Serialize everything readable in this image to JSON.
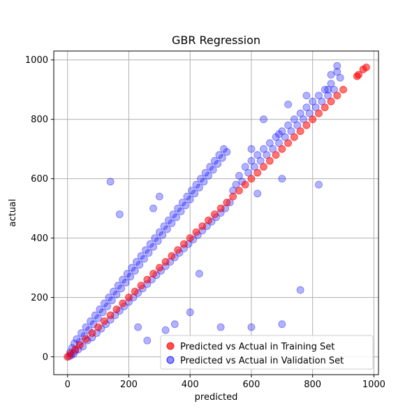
{
  "chart_data": {
    "type": "scatter",
    "title": "GBR Regression",
    "xlabel": "predicted",
    "ylabel": "actual",
    "xlim": [
      -45,
      1015
    ],
    "ylim": [
      -60,
      1030
    ],
    "xticks": [
      0,
      200,
      400,
      600,
      800,
      1000
    ],
    "yticks": [
      0,
      200,
      400,
      600,
      800,
      1000
    ],
    "grid": true,
    "legend_position": "lower-right",
    "series": [
      {
        "name": "Predicted vs Actual in Training Set",
        "color": "#ff0000",
        "opacity": 0.55,
        "points": [
          [
            0,
            0
          ],
          [
            10,
            10
          ],
          [
            25,
            25
          ],
          [
            40,
            40
          ],
          [
            60,
            60
          ],
          [
            80,
            80
          ],
          [
            100,
            100
          ],
          [
            120,
            120
          ],
          [
            140,
            140
          ],
          [
            160,
            160
          ],
          [
            180,
            180
          ],
          [
            200,
            200
          ],
          [
            220,
            220
          ],
          [
            240,
            240
          ],
          [
            260,
            260
          ],
          [
            280,
            280
          ],
          [
            300,
            300
          ],
          [
            320,
            320
          ],
          [
            340,
            340
          ],
          [
            360,
            360
          ],
          [
            380,
            380
          ],
          [
            400,
            400
          ],
          [
            420,
            420
          ],
          [
            440,
            440
          ],
          [
            460,
            460
          ],
          [
            480,
            480
          ],
          [
            500,
            500
          ],
          [
            520,
            520
          ],
          [
            540,
            540
          ],
          [
            560,
            560
          ],
          [
            580,
            580
          ],
          [
            600,
            600
          ],
          [
            620,
            620
          ],
          [
            640,
            640
          ],
          [
            660,
            660
          ],
          [
            680,
            680
          ],
          [
            700,
            700
          ],
          [
            720,
            720
          ],
          [
            740,
            740
          ],
          [
            760,
            760
          ],
          [
            780,
            780
          ],
          [
            800,
            800
          ],
          [
            820,
            820
          ],
          [
            840,
            840
          ],
          [
            860,
            860
          ],
          [
            880,
            880
          ],
          [
            900,
            900
          ],
          [
            945,
            945
          ],
          [
            950,
            950
          ],
          [
            965,
            968
          ],
          [
            975,
            975
          ]
        ]
      },
      {
        "name": "Predicted vs Actual in Validation Set",
        "color": "#0000ff",
        "opacity": 0.3,
        "points": [
          [
            5,
            2
          ],
          [
            8,
            15
          ],
          [
            12,
            5
          ],
          [
            15,
            30
          ],
          [
            20,
            10
          ],
          [
            22,
            45
          ],
          [
            25,
            20
          ],
          [
            30,
            60
          ],
          [
            35,
            25
          ],
          [
            40,
            50
          ],
          [
            45,
            80
          ],
          [
            50,
            35
          ],
          [
            55,
            70
          ],
          [
            60,
            100
          ],
          [
            65,
            55
          ],
          [
            70,
            90
          ],
          [
            75,
            120
          ],
          [
            80,
            65
          ],
          [
            85,
            110
          ],
          [
            90,
            140
          ],
          [
            95,
            80
          ],
          [
            100,
            130
          ],
          [
            105,
            160
          ],
          [
            110,
            95
          ],
          [
            115,
            150
          ],
          [
            120,
            180
          ],
          [
            125,
            110
          ],
          [
            130,
            170
          ],
          [
            135,
            200
          ],
          [
            140,
            125
          ],
          [
            145,
            190
          ],
          [
            150,
            220
          ],
          [
            155,
            140
          ],
          [
            160,
            210
          ],
          [
            165,
            240
          ],
          [
            170,
            155
          ],
          [
            175,
            230
          ],
          [
            180,
            260
          ],
          [
            185,
            170
          ],
          [
            190,
            250
          ],
          [
            195,
            280
          ],
          [
            200,
            185
          ],
          [
            205,
            270
          ],
          [
            210,
            300
          ],
          [
            215,
            200
          ],
          [
            220,
            290
          ],
          [
            225,
            320
          ],
          [
            230,
            215
          ],
          [
            235,
            310
          ],
          [
            240,
            340
          ],
          [
            245,
            230
          ],
          [
            250,
            330
          ],
          [
            255,
            360
          ],
          [
            260,
            245
          ],
          [
            265,
            350
          ],
          [
            270,
            380
          ],
          [
            275,
            260
          ],
          [
            280,
            370
          ],
          [
            285,
            400
          ],
          [
            290,
            275
          ],
          [
            295,
            390
          ],
          [
            300,
            420
          ],
          [
            305,
            290
          ],
          [
            310,
            410
          ],
          [
            315,
            440
          ],
          [
            320,
            305
          ],
          [
            325,
            430
          ],
          [
            330,
            460
          ],
          [
            335,
            320
          ],
          [
            340,
            450
          ],
          [
            345,
            480
          ],
          [
            350,
            335
          ],
          [
            355,
            470
          ],
          [
            360,
            500
          ],
          [
            365,
            350
          ],
          [
            370,
            490
          ],
          [
            375,
            520
          ],
          [
            380,
            365
          ],
          [
            385,
            510
          ],
          [
            390,
            540
          ],
          [
            395,
            380
          ],
          [
            400,
            530
          ],
          [
            405,
            560
          ],
          [
            410,
            395
          ],
          [
            415,
            550
          ],
          [
            420,
            580
          ],
          [
            425,
            410
          ],
          [
            430,
            570
          ],
          [
            435,
            600
          ],
          [
            440,
            425
          ],
          [
            445,
            590
          ],
          [
            450,
            620
          ],
          [
            455,
            440
          ],
          [
            460,
            610
          ],
          [
            465,
            640
          ],
          [
            470,
            455
          ],
          [
            475,
            630
          ],
          [
            480,
            660
          ],
          [
            485,
            470
          ],
          [
            490,
            650
          ],
          [
            495,
            680
          ],
          [
            500,
            485
          ],
          [
            505,
            670
          ],
          [
            510,
            700
          ],
          [
            515,
            500
          ],
          [
            520,
            690
          ],
          [
            530,
            520
          ],
          [
            540,
            560
          ],
          [
            550,
            580
          ],
          [
            560,
            610
          ],
          [
            570,
            590
          ],
          [
            580,
            640
          ],
          [
            590,
            620
          ],
          [
            600,
            660
          ],
          [
            610,
            640
          ],
          [
            620,
            680
          ],
          [
            630,
            660
          ],
          [
            640,
            700
          ],
          [
            650,
            680
          ],
          [
            660,
            720
          ],
          [
            670,
            700
          ],
          [
            680,
            740
          ],
          [
            690,
            720
          ],
          [
            700,
            760
          ],
          [
            710,
            740
          ],
          [
            720,
            780
          ],
          [
            730,
            760
          ],
          [
            740,
            800
          ],
          [
            750,
            780
          ],
          [
            760,
            820
          ],
          [
            770,
            800
          ],
          [
            780,
            840
          ],
          [
            790,
            820
          ],
          [
            800,
            860
          ],
          [
            810,
            840
          ],
          [
            820,
            880
          ],
          [
            830,
            860
          ],
          [
            840,
            900
          ],
          [
            850,
            880
          ],
          [
            860,
            920
          ],
          [
            870,
            900
          ],
          [
            880,
            960
          ],
          [
            890,
            940
          ],
          [
            140,
            590
          ],
          [
            170,
            480
          ],
          [
            230,
            100
          ],
          [
            260,
            55
          ],
          [
            320,
            90
          ],
          [
            350,
            110
          ],
          [
            400,
            150
          ],
          [
            500,
            100
          ],
          [
            600,
            100
          ],
          [
            700,
            110
          ],
          [
            760,
            225
          ],
          [
            430,
            280
          ],
          [
            280,
            500
          ],
          [
            300,
            540
          ],
          [
            620,
            550
          ],
          [
            700,
            600
          ],
          [
            820,
            580
          ],
          [
            850,
            900
          ],
          [
            860,
            950
          ],
          [
            880,
            980
          ],
          [
            600,
            700
          ],
          [
            640,
            800
          ],
          [
            690,
            750
          ],
          [
            720,
            850
          ],
          [
            780,
            880
          ]
        ]
      }
    ]
  }
}
